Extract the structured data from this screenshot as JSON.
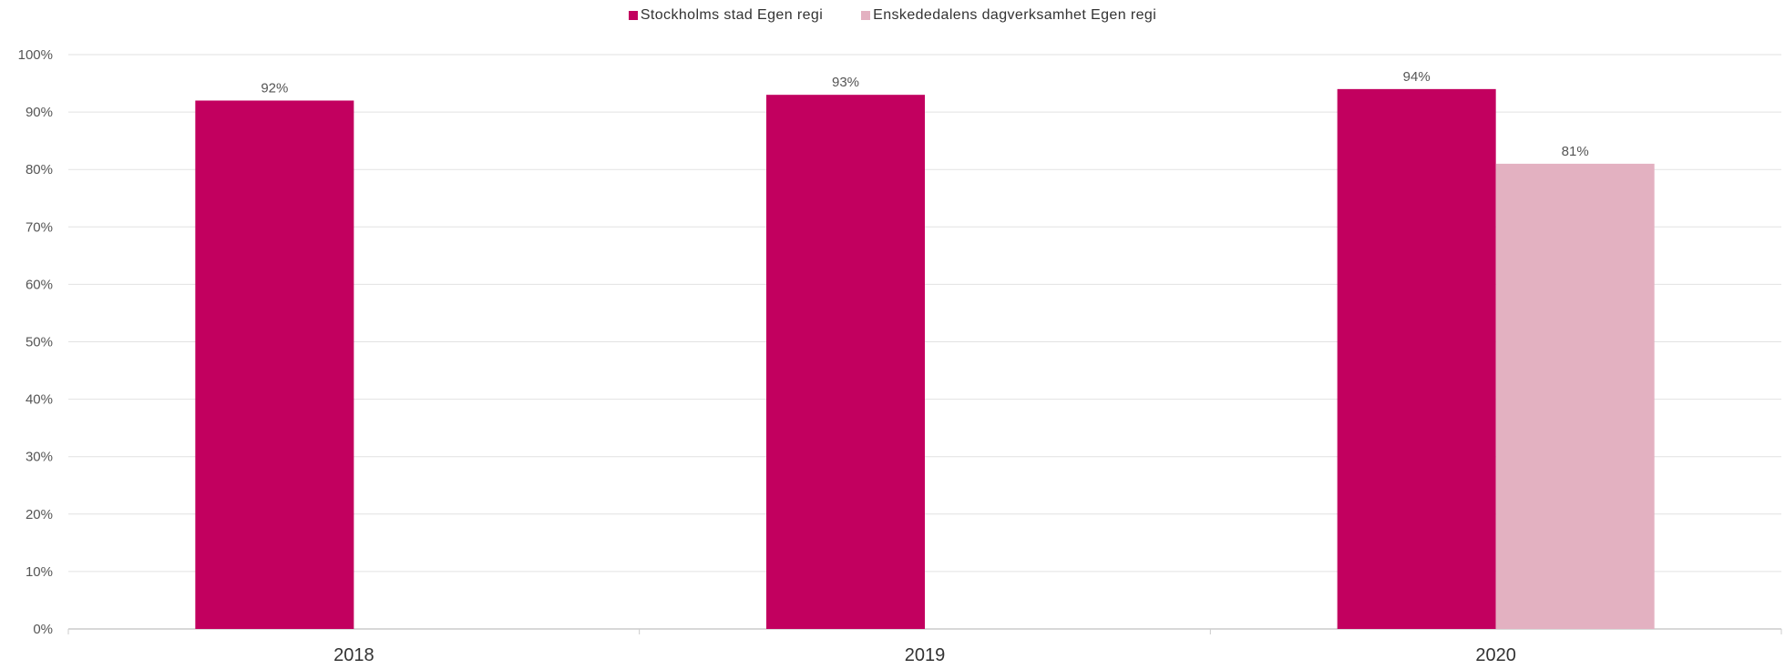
{
  "chart_data": {
    "type": "bar",
    "categories": [
      "2018",
      "2019",
      "2020"
    ],
    "series": [
      {
        "name": "Stockholms stad Egen regi",
        "color": "#c2005f",
        "values": [
          92,
          93,
          94
        ],
        "labels": [
          "92%",
          "93%",
          "94%"
        ]
      },
      {
        "name": "Enskededalens dagverksamhet Egen regi",
        "color": "#e3b1c1",
        "values": [
          null,
          null,
          81
        ],
        "labels": [
          "",
          "",
          "81%"
        ]
      }
    ],
    "yticks": [
      "0%",
      "10%",
      "20%",
      "30%",
      "40%",
      "50%",
      "60%",
      "70%",
      "80%",
      "90%",
      "100%"
    ],
    "ylim": [
      0,
      100
    ],
    "grid": true,
    "legend_position": "top-center"
  }
}
